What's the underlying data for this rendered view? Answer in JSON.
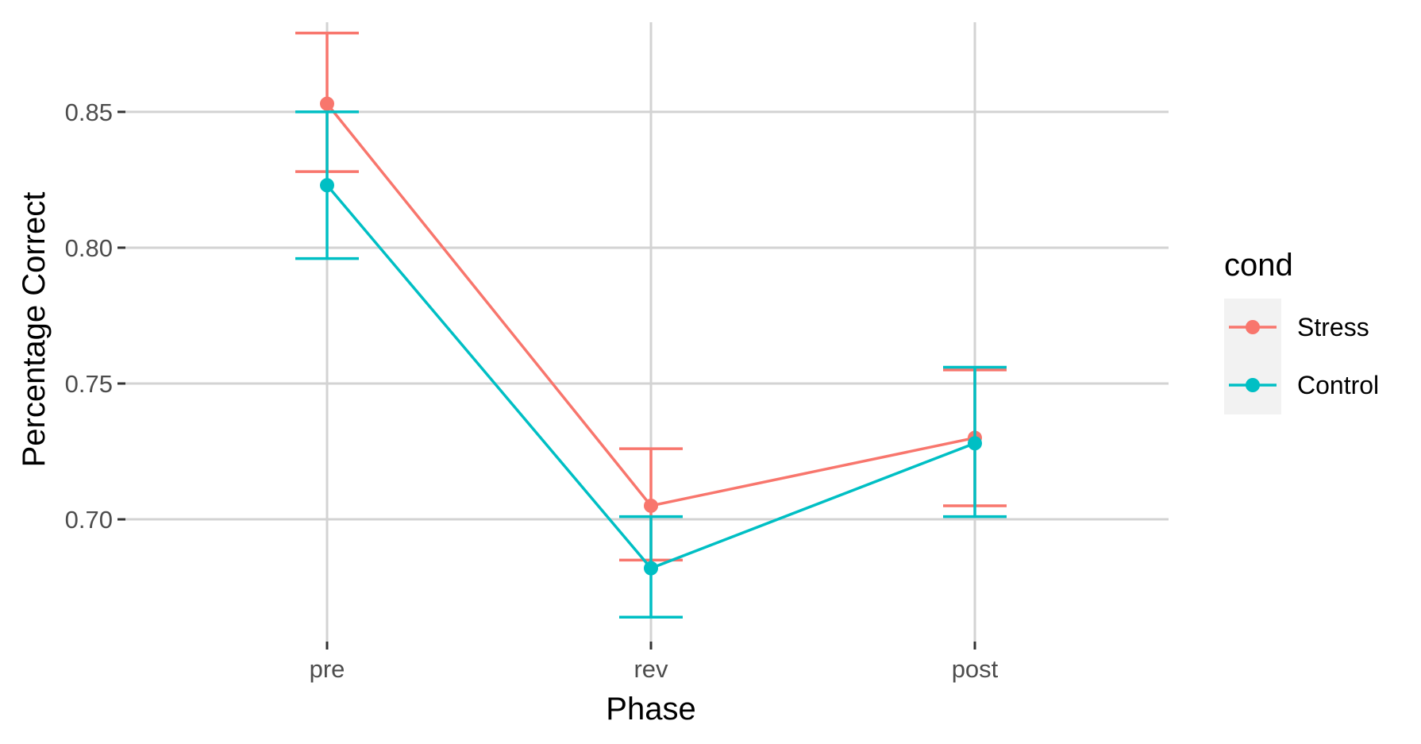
{
  "chart_data": {
    "type": "line",
    "title": "",
    "xlabel": "Phase",
    "ylabel": "Percentage Correct",
    "categories": [
      "pre",
      "rev",
      "post"
    ],
    "yticks": [
      0.7,
      0.75,
      0.8,
      0.85
    ],
    "ytick_labels": [
      "0.70",
      "0.75",
      "0.80",
      "0.85"
    ],
    "ylim": [
      0.655,
      0.883
    ],
    "grid": true,
    "legend": {
      "title": "cond",
      "position": "right"
    },
    "series": [
      {
        "name": "Stress",
        "color": "#F8766D",
        "values": [
          0.853,
          0.705,
          0.73
        ],
        "error_low": [
          0.828,
          0.685,
          0.705
        ],
        "error_high": [
          0.879,
          0.726,
          0.755
        ]
      },
      {
        "name": "Control",
        "color": "#00BFC4",
        "values": [
          0.823,
          0.682,
          0.728
        ],
        "error_low": [
          0.796,
          0.664,
          0.701
        ],
        "error_high": [
          0.85,
          0.701,
          0.756
        ]
      }
    ]
  }
}
